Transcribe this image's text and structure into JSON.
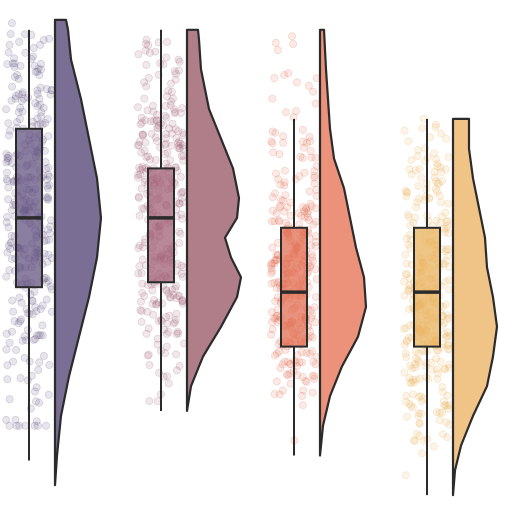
{
  "chart_data": {
    "type": "raincloud",
    "title": "",
    "xlabel": "",
    "ylabel": "",
    "axes_visible": false,
    "grid": false,
    "ylim": [
      0,
      100
    ],
    "groups": [
      {
        "color": "#5e4e7d",
        "fill": "#7a6e94",
        "box": {
          "min": 9,
          "q1": 44,
          "median": 58,
          "q3": 76,
          "max": 96
        },
        "density": [
          [
            4,
            0.0
          ],
          [
            10,
            0.02
          ],
          [
            18,
            0.06
          ],
          [
            26,
            0.14
          ],
          [
            34,
            0.24
          ],
          [
            42,
            0.34
          ],
          [
            50,
            0.42
          ],
          [
            58,
            0.46
          ],
          [
            66,
            0.42
          ],
          [
            74,
            0.34
          ],
          [
            82,
            0.26
          ],
          [
            90,
            0.16
          ],
          [
            94,
            0.14
          ],
          [
            96,
            0.13
          ],
          [
            98,
            0.11
          ]
        ],
        "points_range": [
          16,
          99
        ]
      },
      {
        "color": "#9c5a70",
        "fill": "#b07e89",
        "box": {
          "min": 19,
          "q1": 45,
          "median": 58,
          "q3": 68,
          "max": 96
        },
        "density": [
          [
            19,
            0.0
          ],
          [
            24,
            0.04
          ],
          [
            30,
            0.16
          ],
          [
            36,
            0.34
          ],
          [
            42,
            0.5
          ],
          [
            46,
            0.54
          ],
          [
            50,
            0.44
          ],
          [
            54,
            0.38
          ],
          [
            58,
            0.5
          ],
          [
            62,
            0.52
          ],
          [
            68,
            0.46
          ],
          [
            74,
            0.34
          ],
          [
            80,
            0.22
          ],
          [
            88,
            0.14
          ],
          [
            94,
            0.12
          ],
          [
            96,
            0.11
          ]
        ],
        "points_range": [
          21,
          96
        ]
      },
      {
        "color": "#e06a4c",
        "fill": "#ec917a",
        "box": {
          "min": 10,
          "q1": 32,
          "median": 43,
          "q3": 56,
          "max": 78
        },
        "density": [
          [
            10,
            0.0
          ],
          [
            16,
            0.03
          ],
          [
            22,
            0.1
          ],
          [
            28,
            0.22
          ],
          [
            34,
            0.38
          ],
          [
            40,
            0.46
          ],
          [
            46,
            0.44
          ],
          [
            52,
            0.36
          ],
          [
            58,
            0.3
          ],
          [
            64,
            0.24
          ],
          [
            70,
            0.14
          ],
          [
            76,
            0.1
          ],
          [
            82,
            0.08
          ],
          [
            88,
            0.06
          ],
          [
            92,
            0.05
          ],
          [
            96,
            0.04
          ]
        ],
        "points_range": [
          10,
          96
        ]
      },
      {
        "color": "#e9ae58",
        "fill": "#f0c387",
        "box": {
          "min": 2,
          "q1": 32,
          "median": 43,
          "q3": 56,
          "max": 78
        },
        "density": [
          [
            2,
            0.0
          ],
          [
            7,
            0.02
          ],
          [
            12,
            0.08
          ],
          [
            18,
            0.2
          ],
          [
            24,
            0.34
          ],
          [
            30,
            0.4
          ],
          [
            36,
            0.44
          ],
          [
            42,
            0.4
          ],
          [
            48,
            0.34
          ],
          [
            54,
            0.32
          ],
          [
            60,
            0.26
          ],
          [
            66,
            0.2
          ],
          [
            72,
            0.16
          ],
          [
            78,
            0.16
          ]
        ],
        "points_range": [
          6,
          78
        ]
      }
    ]
  }
}
